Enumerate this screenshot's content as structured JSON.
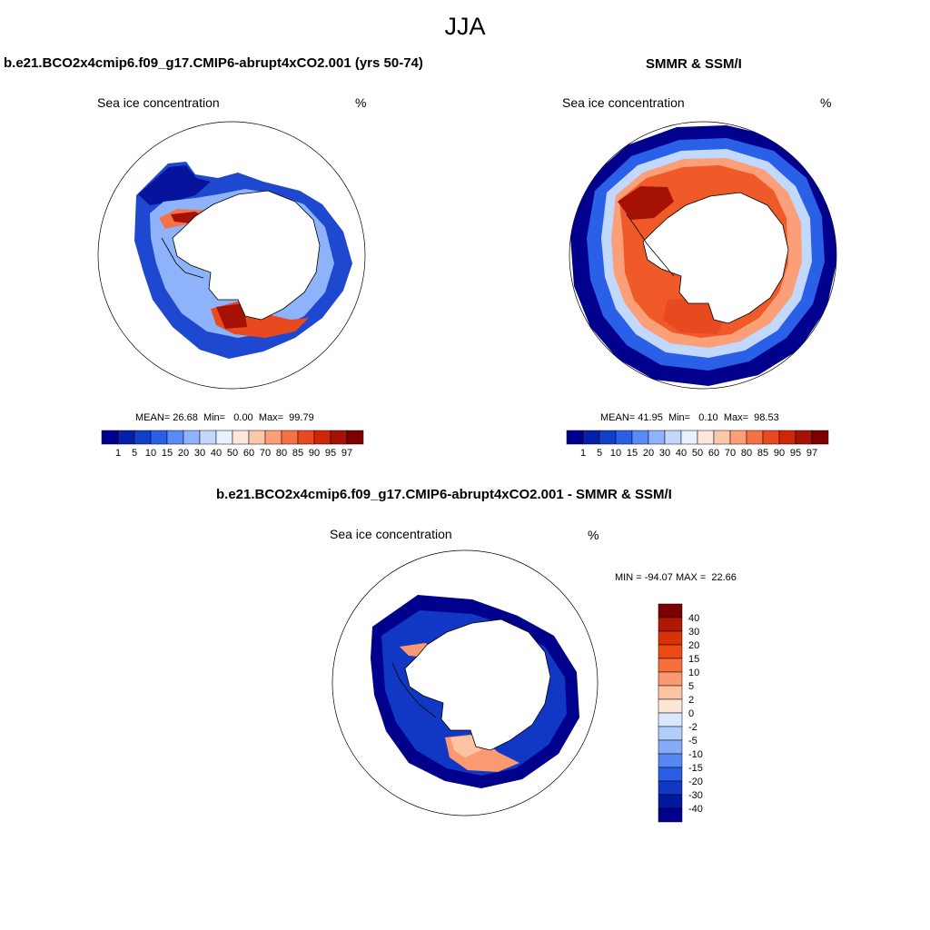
{
  "figure": {
    "title": "JJA"
  },
  "panel_model": {
    "title": "b.e21.BCO2x4cmip6.f09_g17.CMIP6-abrupt4xCO2.001 (yrs 50-74)",
    "variable": "Sea ice concentration",
    "units": "%",
    "stats": {
      "mean_label": "MEAN=",
      "mean": "26.68",
      "min_label": "Min=",
      "min": "0.00",
      "max_label": "Max=",
      "max": "99.79"
    }
  },
  "panel_obs": {
    "title": "SMMR & SSM/I",
    "variable": "Sea ice concentration",
    "units": "%",
    "stats": {
      "mean_label": "MEAN=",
      "mean": "41.95",
      "min_label": "Min=",
      "min": "0.10",
      "max_label": "Max=",
      "max": "98.53"
    }
  },
  "panel_diff": {
    "title": "b.e21.BCO2x4cmip6.f09_g17.CMIP6-abrupt4xCO2.001 - SMMR & SSM/I",
    "variable": "Sea ice concentration",
    "units": "%",
    "minmax_text": "MIN = -94.07 MAX =  22.66"
  },
  "colorbar_conc": {
    "labels": [
      "1",
      "5",
      "10",
      "15",
      "20",
      "30",
      "40",
      "50",
      "60",
      "70",
      "80",
      "85",
      "90",
      "95",
      "97"
    ],
    "colors": [
      "#00008c",
      "#0520a8",
      "#1440c8",
      "#2a5fe8",
      "#5a8af5",
      "#8eb3fa",
      "#c2d8fc",
      "#e8f1fe",
      "#fde7da",
      "#fcc8aa",
      "#fa9f78",
      "#f57248",
      "#e8491e",
      "#cc2808",
      "#a51205",
      "#7d0000"
    ]
  },
  "colorbar_diff": {
    "labels": [
      "40",
      "30",
      "20",
      "15",
      "10",
      "5",
      "2",
      "0",
      "-2",
      "-5",
      "-10",
      "-15",
      "-20",
      "-30",
      "-40"
    ],
    "colors": [
      "#7d0000",
      "#b01803",
      "#d83208",
      "#f04a14",
      "#f86f3e",
      "#fb9a70",
      "#fdc4a4",
      "#fde6d6",
      "#d9e8fd",
      "#b3cdfb",
      "#86acf7",
      "#5687f2",
      "#2b5ee6",
      "#1038c4",
      "#0318a0",
      "#00008c"
    ]
  },
  "chart_data": {
    "type": "heatmap",
    "title": "JJA",
    "projection": "south polar stereographic",
    "panels": [
      {
        "name": "model",
        "title": "b.e21.BCO2x4cmip6.f09_g17.CMIP6-abrupt4xCO2.001 (yrs 50-74)",
        "variable": "Sea ice concentration",
        "units": "%",
        "mean": 26.68,
        "min": 0.0,
        "max": 99.79
      },
      {
        "name": "observations",
        "title": "SMMR & SSM/I",
        "variable": "Sea ice concentration",
        "units": "%",
        "mean": 41.95,
        "min": 0.1,
        "max": 98.53
      },
      {
        "name": "difference",
        "title": "b.e21.BCO2x4cmip6.f09_g17.CMIP6-abrupt4xCO2.001 - SMMR & SSM/I",
        "variable": "Sea ice concentration",
        "units": "%",
        "min": -94.07,
        "max": 22.66
      }
    ],
    "levels_concentration": [
      1,
      5,
      10,
      15,
      20,
      30,
      40,
      50,
      60,
      70,
      80,
      85,
      90,
      95,
      97
    ],
    "levels_difference": [
      -40,
      -30,
      -20,
      -15,
      -10,
      -5,
      -2,
      0,
      2,
      5,
      10,
      15,
      20,
      30,
      40
    ]
  }
}
